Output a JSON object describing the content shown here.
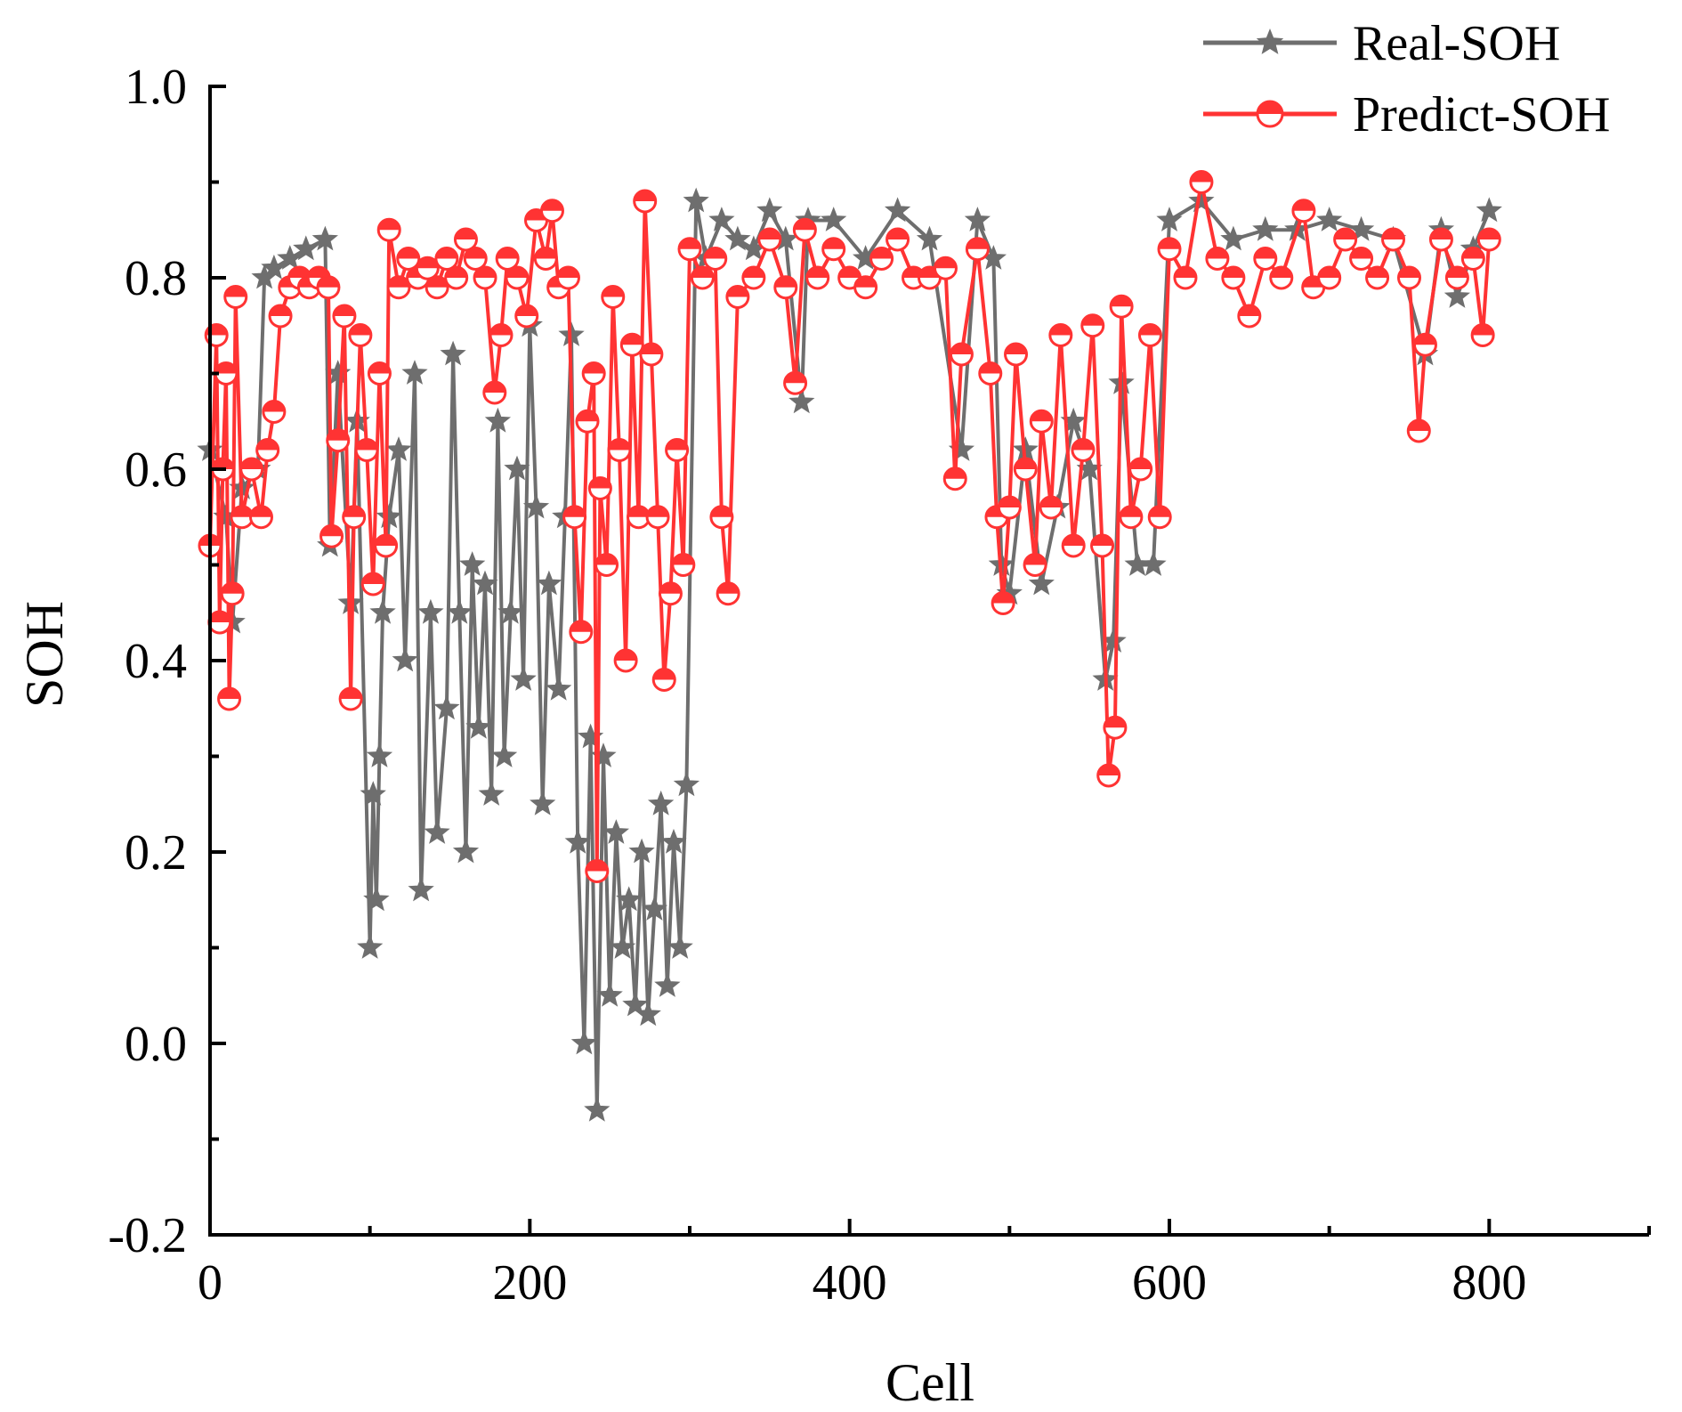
{
  "chart_data": {
    "type": "line",
    "title": "",
    "xlabel": "Cell",
    "ylabel": "SOH",
    "xlim": [
      0,
      900
    ],
    "ylim": [
      -0.2,
      1.0
    ],
    "x_ticks": [
      0,
      200,
      400,
      600,
      800
    ],
    "x_tick_labels": [
      "0",
      "200",
      "400",
      "600",
      "800"
    ],
    "y_ticks": [
      -0.2,
      0.0,
      0.2,
      0.4,
      0.6,
      0.8,
      1.0
    ],
    "y_tick_labels": [
      "-0.2",
      "0.0",
      "0.2",
      "0.4",
      "0.6",
      "0.8",
      "1.0"
    ],
    "grid": false,
    "legend_position": "top-right",
    "series": [
      {
        "name": "Real-SOH",
        "color": "#6e6e6e",
        "marker": "star",
        "points": [
          [
            0,
            0.62
          ],
          [
            10,
            0.55
          ],
          [
            14,
            0.44
          ],
          [
            20,
            0.58
          ],
          [
            30,
            0.6
          ],
          [
            34,
            0.8
          ],
          [
            40,
            0.81
          ],
          [
            50,
            0.82
          ],
          [
            60,
            0.83
          ],
          [
            72,
            0.84
          ],
          [
            75,
            0.52
          ],
          [
            80,
            0.7
          ],
          [
            88,
            0.46
          ],
          [
            92,
            0.65
          ],
          [
            100,
            0.1
          ],
          [
            102,
            0.26
          ],
          [
            104,
            0.15
          ],
          [
            106,
            0.3
          ],
          [
            108,
            0.45
          ],
          [
            112,
            0.55
          ],
          [
            118,
            0.62
          ],
          [
            122,
            0.4
          ],
          [
            128,
            0.7
          ],
          [
            132,
            0.16
          ],
          [
            138,
            0.45
          ],
          [
            142,
            0.22
          ],
          [
            148,
            0.35
          ],
          [
            152,
            0.72
          ],
          [
            156,
            0.45
          ],
          [
            160,
            0.2
          ],
          [
            164,
            0.5
          ],
          [
            168,
            0.33
          ],
          [
            172,
            0.48
          ],
          [
            176,
            0.26
          ],
          [
            180,
            0.65
          ],
          [
            184,
            0.3
          ],
          [
            188,
            0.45
          ],
          [
            192,
            0.6
          ],
          [
            196,
            0.38
          ],
          [
            200,
            0.75
          ],
          [
            204,
            0.56
          ],
          [
            208,
            0.25
          ],
          [
            212,
            0.48
          ],
          [
            218,
            0.37
          ],
          [
            222,
            0.55
          ],
          [
            226,
            0.74
          ],
          [
            230,
            0.21
          ],
          [
            234,
            0.0
          ],
          [
            238,
            0.32
          ],
          [
            242,
            -0.07
          ],
          [
            246,
            0.3
          ],
          [
            250,
            0.05
          ],
          [
            254,
            0.22
          ],
          [
            258,
            0.1
          ],
          [
            262,
            0.15
          ],
          [
            266,
            0.04
          ],
          [
            270,
            0.2
          ],
          [
            274,
            0.03
          ],
          [
            278,
            0.14
          ],
          [
            282,
            0.25
          ],
          [
            286,
            0.06
          ],
          [
            290,
            0.21
          ],
          [
            294,
            0.1
          ],
          [
            298,
            0.27
          ],
          [
            304,
            0.88
          ],
          [
            310,
            0.82
          ],
          [
            320,
            0.86
          ],
          [
            330,
            0.84
          ],
          [
            340,
            0.83
          ],
          [
            350,
            0.87
          ],
          [
            360,
            0.84
          ],
          [
            370,
            0.67
          ],
          [
            374,
            0.86
          ],
          [
            390,
            0.86
          ],
          [
            410,
            0.82
          ],
          [
            430,
            0.87
          ],
          [
            450,
            0.84
          ],
          [
            470,
            0.62
          ],
          [
            480,
            0.86
          ],
          [
            490,
            0.82
          ],
          [
            495,
            0.5
          ],
          [
            500,
            0.47
          ],
          [
            510,
            0.62
          ],
          [
            520,
            0.48
          ],
          [
            530,
            0.56
          ],
          [
            540,
            0.65
          ],
          [
            550,
            0.6
          ],
          [
            560,
            0.38
          ],
          [
            565,
            0.42
          ],
          [
            570,
            0.69
          ],
          [
            580,
            0.5
          ],
          [
            590,
            0.5
          ],
          [
            600,
            0.86
          ],
          [
            620,
            0.88
          ],
          [
            640,
            0.84
          ],
          [
            660,
            0.85
          ],
          [
            680,
            0.85
          ],
          [
            700,
            0.86
          ],
          [
            720,
            0.85
          ],
          [
            740,
            0.84
          ],
          [
            760,
            0.72
          ],
          [
            770,
            0.85
          ],
          [
            780,
            0.78
          ],
          [
            790,
            0.83
          ],
          [
            800,
            0.87
          ]
        ]
      },
      {
        "name": "Predict-SOH",
        "color": "#ff3333",
        "marker": "circle-half",
        "points": [
          [
            0,
            0.52
          ],
          [
            4,
            0.74
          ],
          [
            6,
            0.44
          ],
          [
            8,
            0.6
          ],
          [
            10,
            0.7
          ],
          [
            12,
            0.36
          ],
          [
            14,
            0.47
          ],
          [
            16,
            0.78
          ],
          [
            20,
            0.55
          ],
          [
            26,
            0.6
          ],
          [
            32,
            0.55
          ],
          [
            36,
            0.62
          ],
          [
            40,
            0.66
          ],
          [
            44,
            0.76
          ],
          [
            50,
            0.79
          ],
          [
            56,
            0.8
          ],
          [
            62,
            0.79
          ],
          [
            68,
            0.8
          ],
          [
            74,
            0.79
          ],
          [
            76,
            0.53
          ],
          [
            80,
            0.63
          ],
          [
            84,
            0.76
          ],
          [
            88,
            0.36
          ],
          [
            90,
            0.55
          ],
          [
            94,
            0.74
          ],
          [
            98,
            0.62
          ],
          [
            102,
            0.48
          ],
          [
            106,
            0.7
          ],
          [
            110,
            0.52
          ],
          [
            112,
            0.85
          ],
          [
            118,
            0.79
          ],
          [
            124,
            0.82
          ],
          [
            130,
            0.8
          ],
          [
            136,
            0.81
          ],
          [
            142,
            0.79
          ],
          [
            148,
            0.82
          ],
          [
            154,
            0.8
          ],
          [
            160,
            0.84
          ],
          [
            166,
            0.82
          ],
          [
            172,
            0.8
          ],
          [
            178,
            0.68
          ],
          [
            182,
            0.74
          ],
          [
            186,
            0.82
          ],
          [
            192,
            0.8
          ],
          [
            198,
            0.76
          ],
          [
            204,
            0.86
          ],
          [
            210,
            0.82
          ],
          [
            214,
            0.87
          ],
          [
            218,
            0.79
          ],
          [
            224,
            0.8
          ],
          [
            228,
            0.55
          ],
          [
            232,
            0.43
          ],
          [
            236,
            0.65
          ],
          [
            240,
            0.7
          ],
          [
            242,
            0.18
          ],
          [
            244,
            0.58
          ],
          [
            248,
            0.5
          ],
          [
            252,
            0.78
          ],
          [
            256,
            0.62
          ],
          [
            260,
            0.4
          ],
          [
            264,
            0.73
          ],
          [
            268,
            0.55
          ],
          [
            272,
            0.88
          ],
          [
            276,
            0.72
          ],
          [
            280,
            0.55
          ],
          [
            284,
            0.38
          ],
          [
            288,
            0.47
          ],
          [
            292,
            0.62
          ],
          [
            296,
            0.5
          ],
          [
            300,
            0.83
          ],
          [
            308,
            0.8
          ],
          [
            316,
            0.82
          ],
          [
            320,
            0.55
          ],
          [
            324,
            0.47
          ],
          [
            330,
            0.78
          ],
          [
            340,
            0.8
          ],
          [
            350,
            0.84
          ],
          [
            360,
            0.79
          ],
          [
            366,
            0.69
          ],
          [
            372,
            0.85
          ],
          [
            380,
            0.8
          ],
          [
            390,
            0.83
          ],
          [
            400,
            0.8
          ],
          [
            410,
            0.79
          ],
          [
            420,
            0.82
          ],
          [
            430,
            0.84
          ],
          [
            440,
            0.8
          ],
          [
            450,
            0.8
          ],
          [
            460,
            0.81
          ],
          [
            466,
            0.59
          ],
          [
            470,
            0.72
          ],
          [
            480,
            0.83
          ],
          [
            488,
            0.7
          ],
          [
            492,
            0.55
          ],
          [
            496,
            0.46
          ],
          [
            500,
            0.56
          ],
          [
            504,
            0.72
          ],
          [
            510,
            0.6
          ],
          [
            516,
            0.5
          ],
          [
            520,
            0.65
          ],
          [
            526,
            0.56
          ],
          [
            532,
            0.74
          ],
          [
            540,
            0.52
          ],
          [
            546,
            0.62
          ],
          [
            552,
            0.75
          ],
          [
            558,
            0.52
          ],
          [
            562,
            0.28
          ],
          [
            566,
            0.33
          ],
          [
            570,
            0.77
          ],
          [
            576,
            0.55
          ],
          [
            582,
            0.6
          ],
          [
            588,
            0.74
          ],
          [
            594,
            0.55
          ],
          [
            600,
            0.83
          ],
          [
            610,
            0.8
          ],
          [
            620,
            0.9
          ],
          [
            630,
            0.82
          ],
          [
            640,
            0.8
          ],
          [
            650,
            0.76
          ],
          [
            660,
            0.82
          ],
          [
            670,
            0.8
          ],
          [
            684,
            0.87
          ],
          [
            690,
            0.79
          ],
          [
            700,
            0.8
          ],
          [
            710,
            0.84
          ],
          [
            720,
            0.82
          ],
          [
            730,
            0.8
          ],
          [
            740,
            0.84
          ],
          [
            750,
            0.8
          ],
          [
            756,
            0.64
          ],
          [
            760,
            0.73
          ],
          [
            770,
            0.84
          ],
          [
            780,
            0.8
          ],
          [
            790,
            0.82
          ],
          [
            796,
            0.74
          ],
          [
            800,
            0.84
          ]
        ]
      }
    ]
  }
}
